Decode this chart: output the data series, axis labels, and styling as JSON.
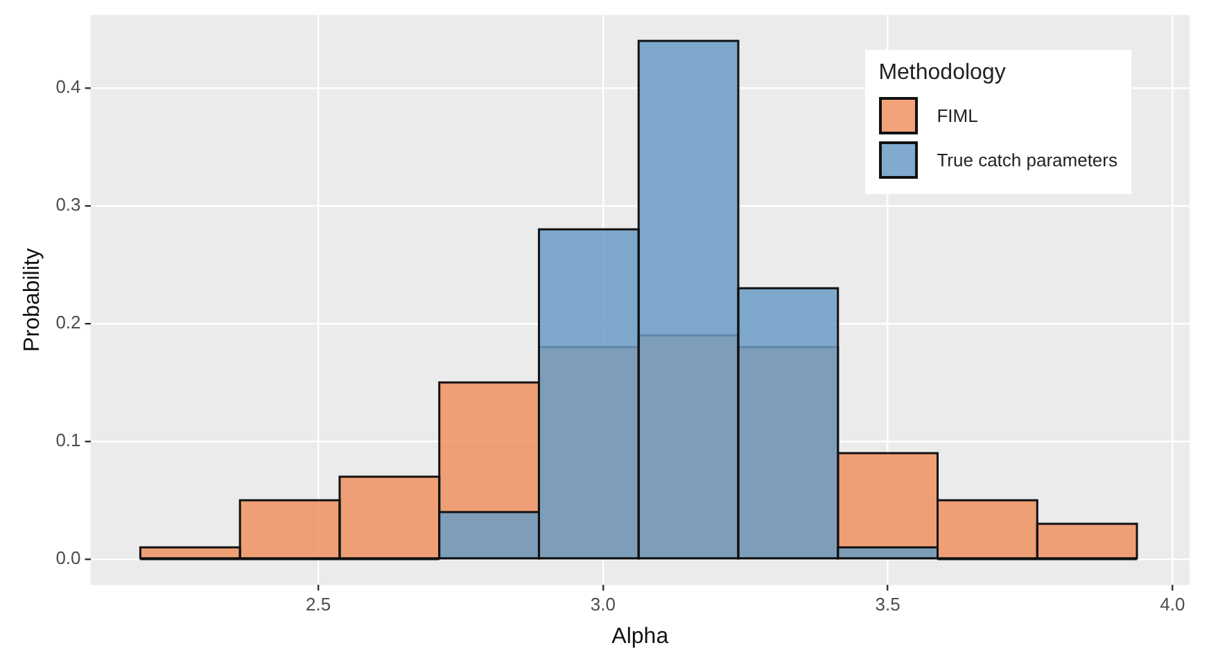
{
  "chart_data": {
    "type": "histogram",
    "xlabel": "Alpha",
    "ylabel": "Probability",
    "legend_title": "Methodology",
    "bins": [
      2.19,
      2.36,
      2.54,
      2.71,
      2.89,
      3.06,
      3.24,
      3.41,
      3.59,
      3.76,
      3.94
    ],
    "series": [
      {
        "name": "FIML",
        "color": "#ef9260",
        "values": [
          0.01,
          0.05,
          0.07,
          0.15,
          0.18,
          0.19,
          0.18,
          0.09,
          0.05,
          0.03
        ]
      },
      {
        "name": "True catch parameters",
        "color": "#6a9cc5",
        "values": [
          0,
          0,
          0,
          0.04,
          0.28,
          0.44,
          0.23,
          0.01,
          0,
          0
        ]
      }
    ],
    "xlim": [
      2.1,
      4.03
    ],
    "xticks": [
      2.5,
      {
        "value": 3,
        "label": "3.0"
      },
      3.5,
      {
        "value": 4,
        "label": "4.0"
      }
    ],
    "ylim": [
      -0.022,
      0.462
    ],
    "yticks": [
      {
        "value": 0,
        "label": "0.0"
      },
      0.1,
      0.2,
      0.3,
      0.4
    ],
    "grid": true,
    "legend": "top right"
  }
}
